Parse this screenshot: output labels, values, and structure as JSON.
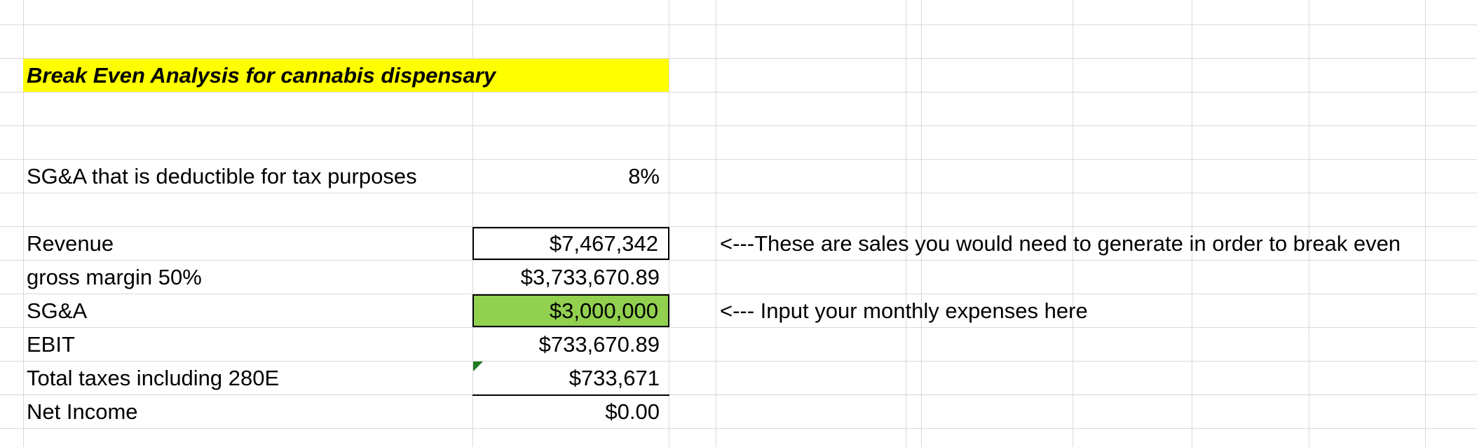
{
  "sheet": {
    "title": "Break Even Analysis for cannabis dispensary",
    "deduction": {
      "label": "SG&A that is deductible for tax purposes",
      "value": "8%"
    },
    "rows": [
      {
        "label": "Revenue",
        "value": "$7,467,342"
      },
      {
        "label": "gross margin 50%",
        "value": "$3,733,670.89"
      },
      {
        "label": "SG&A",
        "value": "$3,000,000"
      },
      {
        "label": "EBIT",
        "value": "$733,670.89"
      },
      {
        "label": "Total taxes including 280E",
        "value": "$733,671"
      },
      {
        "label": "Net Income",
        "value": "$0.00"
      }
    ],
    "notes": {
      "revenue": "<---These are sales you would need to generate in order to break even",
      "sga": "<--- Input your monthly expenses here"
    },
    "colors": {
      "title_fill": "#ffff00",
      "input_fill": "#92d050",
      "gridline": "#d9d9d9",
      "error_indicator": "#1e7c1e"
    }
  }
}
